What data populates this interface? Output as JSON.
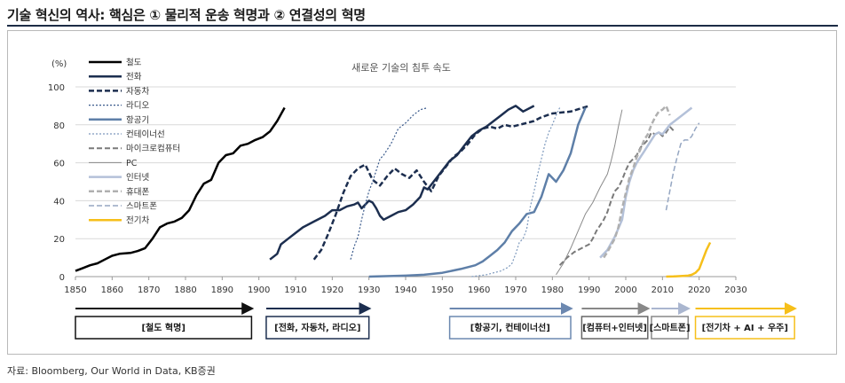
{
  "header": {
    "title": "기술 혁신의 역사: 핵심은 ① 물리적 운송 혁명과 ② 연결성의 혁명"
  },
  "source": "자료: Bloomberg, Our World in Data, KB증권",
  "chart_data": {
    "type": "line",
    "title": "새로운 기술의 침투 속도",
    "ylabel": "(%)",
    "xlim": [
      1850,
      2030
    ],
    "ylim": [
      0,
      100
    ],
    "xticks": [
      1850,
      1860,
      1870,
      1880,
      1890,
      1900,
      1910,
      1920,
      1930,
      1940,
      1950,
      1960,
      1970,
      1980,
      1990,
      2000,
      2010,
      2020,
      2030
    ],
    "yticks": [
      0,
      20,
      40,
      60,
      80,
      100
    ],
    "grid": "horizontal",
    "legend_position": "left",
    "series": [
      {
        "name": "철도",
        "color": "#000000",
        "style": "solid",
        "width": 2.5,
        "points": [
          [
            1850,
            3
          ],
          [
            1852,
            4.5
          ],
          [
            1854,
            6
          ],
          [
            1856,
            7
          ],
          [
            1858,
            9
          ],
          [
            1860,
            11
          ],
          [
            1862,
            12
          ],
          [
            1865,
            12.5
          ],
          [
            1867,
            13.5
          ],
          [
            1869,
            15
          ],
          [
            1871,
            20
          ],
          [
            1873,
            26
          ],
          [
            1875,
            28
          ],
          [
            1877,
            29
          ],
          [
            1879,
            31
          ],
          [
            1881,
            35
          ],
          [
            1883,
            43
          ],
          [
            1885,
            49
          ],
          [
            1887,
            51
          ],
          [
            1889,
            60
          ],
          [
            1891,
            64
          ],
          [
            1893,
            65
          ],
          [
            1895,
            69
          ],
          [
            1897,
            70
          ],
          [
            1899,
            72
          ],
          [
            1901,
            73.5
          ],
          [
            1903,
            76.5
          ],
          [
            1905,
            82
          ],
          [
            1907,
            89
          ]
        ]
      },
      {
        "name": "전화",
        "color": "#1c2e4f",
        "style": "solid",
        "width": 2.5,
        "points": [
          [
            1903,
            9
          ],
          [
            1905,
            12
          ],
          [
            1906,
            17
          ],
          [
            1908,
            20
          ],
          [
            1910,
            23
          ],
          [
            1912,
            26
          ],
          [
            1915,
            29
          ],
          [
            1918,
            32
          ],
          [
            1920,
            35
          ],
          [
            1922,
            35
          ],
          [
            1924,
            37
          ],
          [
            1926,
            38
          ],
          [
            1927,
            39
          ],
          [
            1928,
            36
          ],
          [
            1929,
            38
          ],
          [
            1930,
            40
          ],
          [
            1931,
            39
          ],
          [
            1932,
            36
          ],
          [
            1933,
            32
          ],
          [
            1934,
            30
          ],
          [
            1936,
            32
          ],
          [
            1938,
            34
          ],
          [
            1940,
            35
          ],
          [
            1942,
            38
          ],
          [
            1944,
            42
          ],
          [
            1945,
            47
          ],
          [
            1946,
            46
          ],
          [
            1948,
            51
          ],
          [
            1950,
            56
          ],
          [
            1952,
            61
          ],
          [
            1954,
            64
          ],
          [
            1956,
            69
          ],
          [
            1958,
            74
          ],
          [
            1960,
            77
          ],
          [
            1962,
            79
          ],
          [
            1964,
            82
          ],
          [
            1966,
            85
          ],
          [
            1968,
            88
          ],
          [
            1970,
            90
          ],
          [
            1972,
            87
          ],
          [
            1975,
            90
          ]
        ]
      },
      {
        "name": "자동차",
        "color": "#1c2e4f",
        "style": "dash",
        "width": 2.5,
        "points": [
          [
            1915,
            9
          ],
          [
            1917,
            14
          ],
          [
            1919,
            23
          ],
          [
            1921,
            33
          ],
          [
            1923,
            44
          ],
          [
            1925,
            53
          ],
          [
            1927,
            57
          ],
          [
            1929,
            59
          ],
          [
            1931,
            51
          ],
          [
            1933,
            48
          ],
          [
            1935,
            53
          ],
          [
            1937,
            57
          ],
          [
            1939,
            54
          ],
          [
            1941,
            52
          ],
          [
            1943,
            56
          ],
          [
            1945,
            50
          ],
          [
            1947,
            45
          ],
          [
            1949,
            53
          ],
          [
            1951,
            58
          ],
          [
            1953,
            63
          ],
          [
            1955,
            66
          ],
          [
            1957,
            70
          ],
          [
            1959,
            75
          ],
          [
            1961,
            78
          ],
          [
            1963,
            79
          ],
          [
            1965,
            78
          ],
          [
            1967,
            80
          ],
          [
            1969,
            79
          ],
          [
            1971,
            80
          ],
          [
            1973,
            81
          ],
          [
            1975,
            82
          ],
          [
            1977,
            84
          ],
          [
            1980,
            86
          ],
          [
            1985,
            87
          ],
          [
            1990,
            90
          ]
        ]
      },
      {
        "name": "라디오",
        "color": "#3a5a8c",
        "style": "dot",
        "width": 1.2,
        "points": [
          [
            1925,
            9
          ],
          [
            1926,
            16
          ],
          [
            1927,
            21
          ],
          [
            1928,
            30
          ],
          [
            1929,
            38
          ],
          [
            1930,
            45
          ],
          [
            1931,
            50
          ],
          [
            1932,
            56
          ],
          [
            1933,
            62
          ],
          [
            1934,
            64
          ],
          [
            1936,
            70
          ],
          [
            1938,
            78
          ],
          [
            1940,
            81
          ],
          [
            1942,
            85
          ],
          [
            1944,
            88
          ],
          [
            1946,
            89
          ]
        ]
      },
      {
        "name": "항공기",
        "color": "#5e7fa8",
        "style": "solid",
        "width": 2.5,
        "points": [
          [
            1930,
            0
          ],
          [
            1940,
            0.5
          ],
          [
            1945,
            1
          ],
          [
            1950,
            2
          ],
          [
            1955,
            4
          ],
          [
            1957,
            5
          ],
          [
            1959,
            6
          ],
          [
            1961,
            8
          ],
          [
            1963,
            11
          ],
          [
            1965,
            14
          ],
          [
            1967,
            18
          ],
          [
            1969,
            24
          ],
          [
            1971,
            28
          ],
          [
            1973,
            33
          ],
          [
            1975,
            34
          ],
          [
            1977,
            42
          ],
          [
            1979,
            54
          ],
          [
            1981,
            50
          ],
          [
            1983,
            56
          ],
          [
            1985,
            65
          ],
          [
            1987,
            80
          ],
          [
            1989,
            89
          ]
        ]
      },
      {
        "name": "컨테이너선",
        "color": "#7d99bd",
        "style": "dot",
        "width": 1.2,
        "points": [
          [
            1958,
            0
          ],
          [
            1962,
            1
          ],
          [
            1964,
            2
          ],
          [
            1966,
            3
          ],
          [
            1968,
            5
          ],
          [
            1969,
            7
          ],
          [
            1970,
            12
          ],
          [
            1971,
            18
          ],
          [
            1972,
            20
          ],
          [
            1973,
            25
          ],
          [
            1974,
            37
          ],
          [
            1975,
            45
          ],
          [
            1976,
            54
          ],
          [
            1977,
            62
          ],
          [
            1978,
            70
          ],
          [
            1979,
            76
          ],
          [
            1980,
            80
          ],
          [
            1981,
            85
          ],
          [
            1982,
            89
          ]
        ]
      },
      {
        "name": "마이크로컴퓨터",
        "color": "#7a7a7a",
        "style": "dash",
        "width": 2,
        "points": [
          [
            1982,
            6
          ],
          [
            1984,
            10
          ],
          [
            1986,
            13
          ],
          [
            1988,
            15
          ],
          [
            1990,
            17
          ],
          [
            1991,
            20
          ],
          [
            1992,
            24
          ],
          [
            1993,
            27
          ],
          [
            1994,
            30
          ],
          [
            1995,
            34
          ],
          [
            1996,
            40
          ],
          [
            1997,
            45
          ],
          [
            1998,
            47
          ],
          [
            1999,
            51
          ],
          [
            2000,
            56
          ],
          [
            2001,
            60
          ],
          [
            2002,
            62
          ],
          [
            2003,
            64
          ],
          [
            2004,
            68
          ],
          [
            2005,
            70
          ],
          [
            2006,
            72
          ],
          [
            2007,
            76
          ],
          [
            2008,
            75
          ],
          [
            2009,
            76
          ],
          [
            2010,
            74
          ],
          [
            2011,
            76
          ],
          [
            2012,
            79
          ],
          [
            2013,
            77
          ]
        ]
      },
      {
        "name": "PC",
        "color": "#8a8a8a",
        "style": "solid",
        "width": 1,
        "points": [
          [
            1981,
            1
          ],
          [
            1983,
            7
          ],
          [
            1985,
            15
          ],
          [
            1987,
            24
          ],
          [
            1989,
            33
          ],
          [
            1991,
            39
          ],
          [
            1993,
            47
          ],
          [
            1995,
            54
          ],
          [
            1996,
            61
          ],
          [
            1997,
            69
          ],
          [
            1998,
            79
          ],
          [
            1999,
            88
          ]
        ]
      },
      {
        "name": "인터넷",
        "color": "#b4c1d9",
        "style": "solid",
        "width": 2.5,
        "points": [
          [
            1993,
            10
          ],
          [
            1995,
            14
          ],
          [
            1997,
            21
          ],
          [
            1999,
            30
          ],
          [
            2000,
            42
          ],
          [
            2001,
            50
          ],
          [
            2002,
            56
          ],
          [
            2003,
            60
          ],
          [
            2004,
            63
          ],
          [
            2005,
            66
          ],
          [
            2006,
            69
          ],
          [
            2007,
            72
          ],
          [
            2008,
            75
          ],
          [
            2009,
            76
          ],
          [
            2010,
            75
          ],
          [
            2012,
            80
          ],
          [
            2014,
            83
          ],
          [
            2016,
            86
          ],
          [
            2018,
            89
          ]
        ]
      },
      {
        "name": "휴대폰",
        "color": "#b0b0b0",
        "style": "dash",
        "width": 2.5,
        "points": [
          [
            1994,
            10
          ],
          [
            1995,
            13
          ],
          [
            1997,
            20
          ],
          [
            1998,
            26
          ],
          [
            1999,
            36
          ],
          [
            2000,
            44
          ],
          [
            2001,
            52
          ],
          [
            2002,
            57
          ],
          [
            2003,
            63
          ],
          [
            2004,
            67
          ],
          [
            2005,
            72
          ],
          [
            2006,
            75
          ],
          [
            2007,
            80
          ],
          [
            2008,
            84
          ],
          [
            2009,
            87
          ],
          [
            2010,
            88
          ],
          [
            2011,
            90
          ],
          [
            2012,
            85
          ]
        ]
      },
      {
        "name": "스마트폰",
        "color": "#95a6c2",
        "style": "dash",
        "width": 1.5,
        "points": [
          [
            2011,
            35
          ],
          [
            2012,
            45
          ],
          [
            2013,
            55
          ],
          [
            2014,
            63
          ],
          [
            2015,
            70
          ],
          [
            2016,
            72
          ],
          [
            2017,
            72
          ],
          [
            2018,
            74
          ],
          [
            2019,
            78
          ],
          [
            2020,
            81
          ]
        ]
      },
      {
        "name": "전기차",
        "color": "#f6bf1a",
        "style": "solid",
        "width": 2.5,
        "points": [
          [
            2011,
            0
          ],
          [
            2013,
            0.1
          ],
          [
            2015,
            0.3
          ],
          [
            2017,
            0.5
          ],
          [
            2018,
            1
          ],
          [
            2019,
            2
          ],
          [
            2020,
            4
          ],
          [
            2021,
            9
          ],
          [
            2022,
            14
          ],
          [
            2023,
            18
          ]
        ]
      }
    ],
    "eras": [
      {
        "label": "[철도 혁명]",
        "from": 1850,
        "to": 1898,
        "color": "#111111",
        "border": "#111111"
      },
      {
        "label": "[전화, 자동차, 라디오]",
        "from": 1902,
        "to": 1930,
        "color": "#1c2e4f",
        "border": "#1c2e4f"
      },
      {
        "label": "[항공기, 컨테이너선]",
        "from": 1952,
        "to": 1985,
        "color": "#6c88b0",
        "border": "#6c88b0"
      },
      {
        "label": "[컴퓨터+인터넷]",
        "from": 1988,
        "to": 2006,
        "color": "#888888",
        "border": "#666666"
      },
      {
        "label": "[스마트폰]",
        "from": 2007,
        "to": 2017,
        "color": "#aab6cf",
        "border": "#888888"
      },
      {
        "label": "[전기차 + AI + 우주]",
        "from": 2019,
        "to": 2046,
        "color": "#f6bf1a",
        "border": "#f6bf1a"
      }
    ]
  }
}
